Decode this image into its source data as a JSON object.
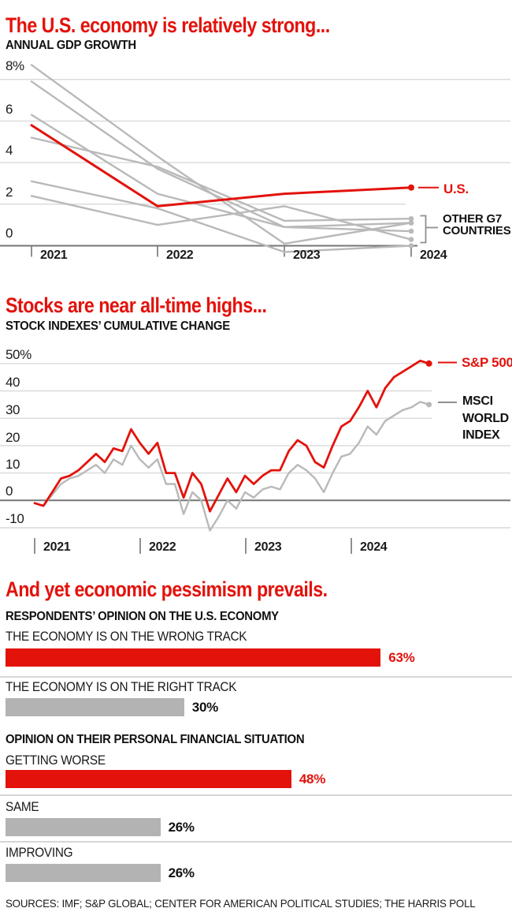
{
  "colors": {
    "accent_red": "#e3120b",
    "muted_line_gray": "#b9b9b9",
    "bar_gray": "#b3b3b3",
    "axis_gray": "#757575",
    "gridline_gray": "#d9d9d9"
  },
  "chart_data": [
    {
      "id": "gdp-growth",
      "type": "line",
      "title": "The U.S. economy is relatively strong...",
      "subtitle": "ANNUAL GDP GROWTH",
      "x_tick_labels": [
        "2021",
        "2022",
        "2023",
        "2024"
      ],
      "y_tick_labels": [
        "8%",
        "6",
        "4",
        "2",
        "0"
      ],
      "y_tick_values": [
        8,
        6,
        4,
        2,
        0
      ],
      "ylim": [
        -0.6,
        8.8
      ],
      "grid": "horizontal",
      "us": {
        "label": "U.S.",
        "values": [
          5.8,
          1.9,
          2.5,
          2.8
        ]
      },
      "other_g7": {
        "label": "OTHER G7 COUNTRIES",
        "lines": [
          [
            8.7,
            4.3,
            0.1,
            1.1
          ],
          [
            7.9,
            3.7,
            0.9,
            0.7
          ],
          [
            6.3,
            2.5,
            0.9,
            1.1
          ],
          [
            5.2,
            3.8,
            1.2,
            1.3
          ],
          [
            3.1,
            1.8,
            -0.3,
            0.0
          ],
          [
            2.4,
            1.0,
            1.9,
            0.3
          ]
        ]
      }
    },
    {
      "id": "stock-indexes",
      "type": "line",
      "title": "Stocks are near all-time highs...",
      "subtitle": "STOCK INDEXES’ CUMULATIVE CHANGE",
      "x_tick_labels": [
        "2021",
        "2022",
        "2023",
        "2024"
      ],
      "y_tick_labels": [
        "50%",
        "40",
        "30",
        "20",
        "10",
        "0",
        "-10"
      ],
      "y_tick_values": [
        50,
        40,
        30,
        20,
        10,
        0,
        -10
      ],
      "ylim": [
        -14,
        53
      ],
      "x_start": "2021",
      "x_interval": "monthly",
      "series": [
        {
          "name": "S&P 500",
          "values": [
            -1,
            -2,
            3,
            8,
            9,
            11,
            14,
            17,
            14,
            19,
            18,
            26,
            21,
            17,
            21,
            10,
            10,
            1,
            10,
            6,
            -4,
            2,
            8,
            3,
            9,
            6,
            9,
            11,
            11,
            18,
            22,
            20,
            14,
            12,
            20,
            27,
            29,
            34,
            40,
            34,
            41,
            45,
            47,
            49,
            51,
            50
          ]
        },
        {
          "name": "MSCI WORLD INDEX",
          "values": [
            -1,
            -2,
            2,
            6,
            8,
            9,
            11,
            13,
            10,
            15,
            13,
            20,
            15,
            12,
            15,
            6,
            6,
            -5,
            3,
            0,
            -11,
            -6,
            0,
            -3,
            3,
            1,
            4,
            5,
            4,
            10,
            13,
            11,
            8,
            3,
            10,
            16,
            17,
            21,
            27,
            24,
            29,
            31,
            33,
            34,
            36,
            35
          ]
        }
      ]
    },
    {
      "id": "opinion-poll",
      "type": "bar",
      "title": "And yet economic pessimism prevails.",
      "groups": [
        {
          "header": "RESPONDENTS’ OPINION ON THE U.S. ECONOMY",
          "bars": [
            {
              "label": "THE ECONOMY IS ON THE WRONG TRACK",
              "value": 63,
              "display": "63%",
              "emphasis": true
            },
            {
              "label": "THE ECONOMY IS ON THE RIGHT TRACK",
              "value": 30,
              "display": "30%",
              "emphasis": false
            }
          ]
        },
        {
          "header": "OPINION ON THEIR PERSONAL FINANCIAL SITUATION",
          "bars": [
            {
              "label": "GETTING WORSE",
              "value": 48,
              "display": "48%",
              "emphasis": true
            },
            {
              "label": "SAME",
              "value": 26,
              "display": "26%",
              "emphasis": false
            },
            {
              "label": "IMPROVING",
              "value": 26,
              "display": "26%",
              "emphasis": false
            }
          ]
        }
      ]
    }
  ],
  "sources": "SOURCES: IMF; S&P GLOBAL; CENTER FOR AMERICAN POLITICAL STUDIES; THE HARRIS POLL"
}
